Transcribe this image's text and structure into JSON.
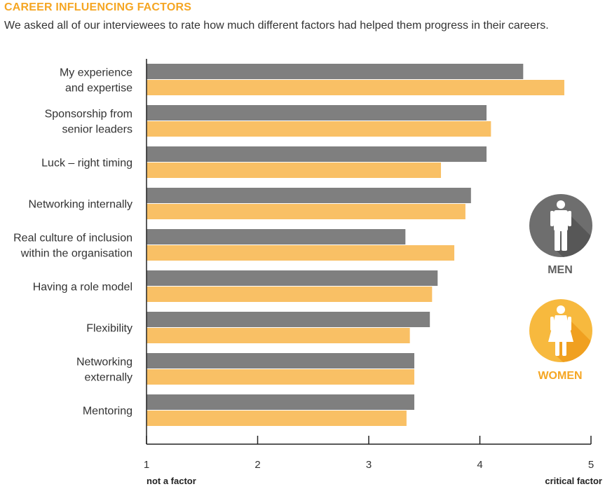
{
  "chart_data": {
    "type": "bar",
    "orientation": "horizontal",
    "title": "CAREER INFLUENCING FACTORS",
    "subtitle": "We asked all of our interviewees to rate how much different factors had helped them progress in their careers.",
    "categories": [
      [
        "My experience",
        "and expertise"
      ],
      [
        "Sponsorship from",
        "senior leaders"
      ],
      [
        "Luck – right timing"
      ],
      [
        "Networking internally"
      ],
      [
        "Real culture of inclusion",
        "within the organisation"
      ],
      [
        "Having a role model"
      ],
      [
        "Flexibility"
      ],
      [
        "Networking",
        "externally"
      ],
      [
        "Mentoring"
      ]
    ],
    "series": [
      {
        "name": "MEN",
        "color": "#7F7F7F",
        "values": [
          4.39,
          4.06,
          4.06,
          3.92,
          3.33,
          3.62,
          3.55,
          3.41,
          3.41
        ]
      },
      {
        "name": "WOMEN",
        "color": "#F9C065",
        "values": [
          4.76,
          4.1,
          3.65,
          3.87,
          3.77,
          3.57,
          3.37,
          3.41,
          3.34
        ]
      }
    ],
    "xlim": [
      1,
      5
    ],
    "xticks": [
      "1",
      "2",
      "3",
      "4",
      "5"
    ],
    "xlabel_min": "not a factor",
    "xlabel_max": "critical factor"
  },
  "legend": {
    "men": {
      "label": "MEN",
      "color": "#5F5F5F",
      "circle_color": "#6E6E6E",
      "icon": "man-icon"
    },
    "women": {
      "label": "WOMEN",
      "color": "#F5A623",
      "circle_color": "#F7B93E",
      "icon": "woman-icon"
    }
  }
}
